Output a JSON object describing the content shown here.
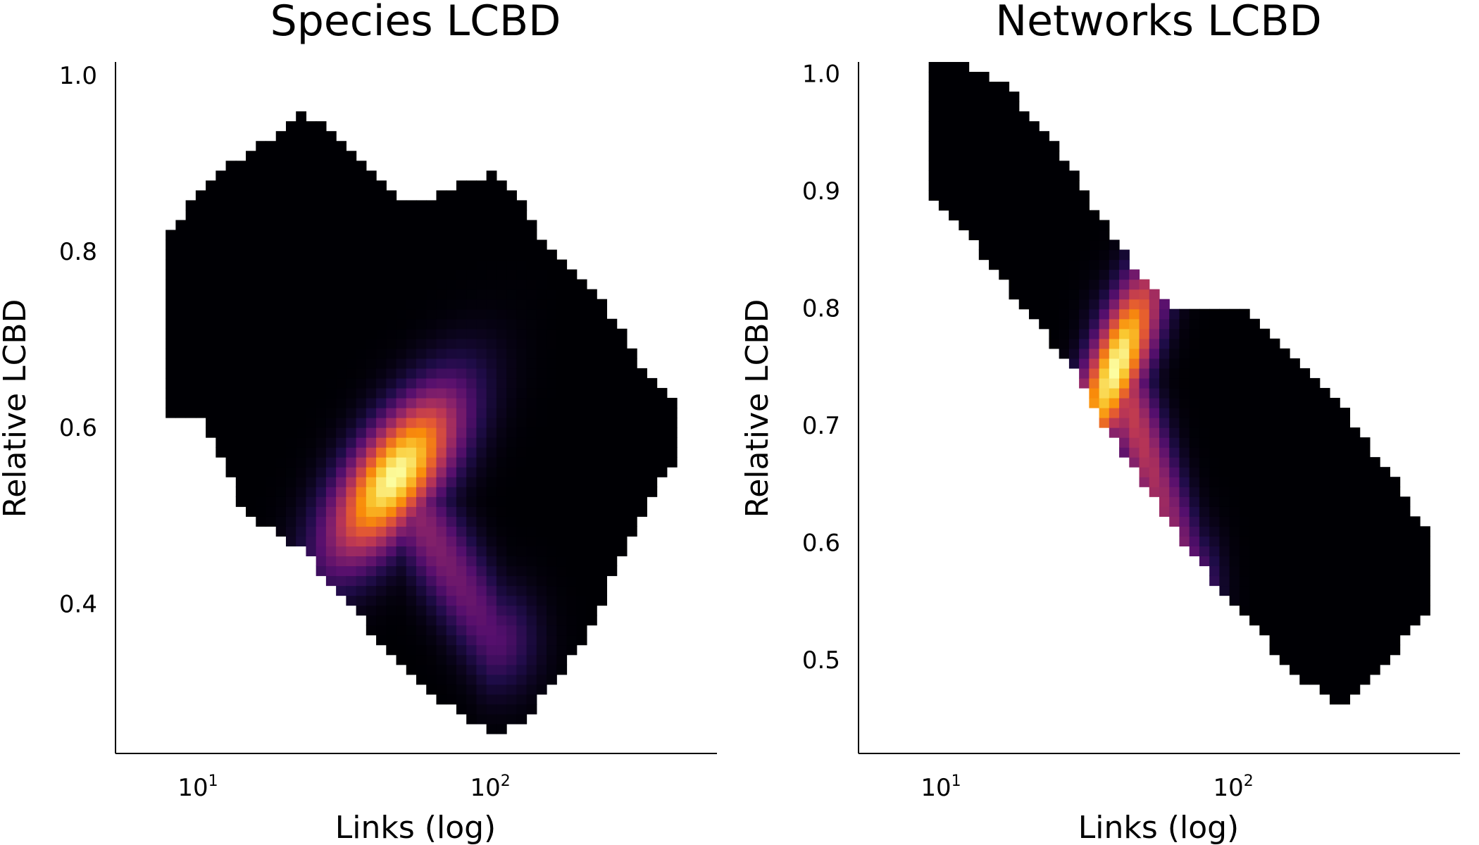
{
  "chart_data": [
    {
      "type": "heatmap",
      "title": "Species LCBD",
      "xlabel": "Links (log)",
      "ylabel": "Relative LCBD",
      "x_scale": "log10",
      "xlim": [
        5,
        570
      ],
      "ylim": [
        0.23,
        1.015
      ],
      "xticks": [
        {
          "value": 10,
          "base": "10",
          "exp": "1"
        },
        {
          "value": 100,
          "base": "10",
          "exp": "2"
        }
      ],
      "yticks": [
        {
          "value": 0.4,
          "label": "0.4"
        },
        {
          "value": 0.6,
          "label": "0.6"
        },
        {
          "value": 0.8,
          "label": "0.8"
        },
        {
          "value": 1.0,
          "label": "1.0"
        }
      ],
      "colormap": "inferno",
      "grid": false,
      "legend": "none",
      "density_peak": {
        "x": 45,
        "y": 0.545
      },
      "density_spread": {
        "x_log10": 0.14,
        "y": 0.06,
        "diag_ratio": 0.6
      },
      "secondary_ridge": {
        "from": {
          "x": 45,
          "y": 0.545
        },
        "to": {
          "x": 100,
          "y": 0.36
        },
        "weight": 0.35
      },
      "support": {
        "x": [
          8,
          10,
          14,
          18,
          22,
          28,
          35,
          45,
          60,
          80,
          100,
          120,
          150,
          200,
          260,
          320,
          400
        ],
        "y_min": [
          0.61,
          0.61,
          0.5,
          0.48,
          0.46,
          0.42,
          0.38,
          0.34,
          0.3,
          0.27,
          0.255,
          0.26,
          0.3,
          0.36,
          0.44,
          0.5,
          0.56
        ],
        "y_max": [
          0.82,
          0.88,
          0.91,
          0.935,
          0.96,
          0.93,
          0.9,
          0.86,
          0.86,
          0.88,
          0.89,
          0.86,
          0.8,
          0.77,
          0.72,
          0.66,
          0.63
        ]
      }
    },
    {
      "type": "heatmap",
      "title": "Networks LCBD",
      "xlabel": "Links (log)",
      "ylabel": "Relative LCBD",
      "x_scale": "log10",
      "xlim": [
        5,
        570
      ],
      "ylim": [
        0.42,
        1.01
      ],
      "xticks": [
        {
          "value": 10,
          "base": "10",
          "exp": "1"
        },
        {
          "value": 100,
          "base": "10",
          "exp": "2"
        }
      ],
      "yticks": [
        {
          "value": 0.5,
          "label": "0.5"
        },
        {
          "value": 0.6,
          "label": "0.6"
        },
        {
          "value": 0.7,
          "label": "0.7"
        },
        {
          "value": 0.8,
          "label": "0.8"
        },
        {
          "value": 0.9,
          "label": "0.9"
        },
        {
          "value": 1.0,
          "label": "1.0"
        }
      ],
      "colormap": "inferno",
      "grid": false,
      "legend": "none",
      "density_peak": {
        "x": 38,
        "y": 0.75
      },
      "density_spread": {
        "x_log10": 0.09,
        "y": 0.05,
        "diag_ratio": 0.85
      },
      "secondary_ridge": {
        "from": {
          "x": 38,
          "y": 0.75
        },
        "to": {
          "x": 70,
          "y": 0.56
        },
        "weight": 0.5
      },
      "support": {
        "x": [
          9,
          12,
          16,
          20,
          25,
          30,
          35,
          45,
          60,
          80,
          100,
          130,
          170,
          220,
          280,
          350,
          430
        ],
        "y_min": [
          0.89,
          0.86,
          0.82,
          0.79,
          0.76,
          0.73,
          0.7,
          0.66,
          0.61,
          0.57,
          0.54,
          0.51,
          0.48,
          0.46,
          0.48,
          0.51,
          0.54
        ],
        "y_max": [
          1.01,
          1.005,
          0.99,
          0.96,
          0.93,
          0.9,
          0.87,
          0.83,
          0.8,
          0.8,
          0.8,
          0.78,
          0.75,
          0.72,
          0.68,
          0.65,
          0.61
        ]
      }
    }
  ]
}
